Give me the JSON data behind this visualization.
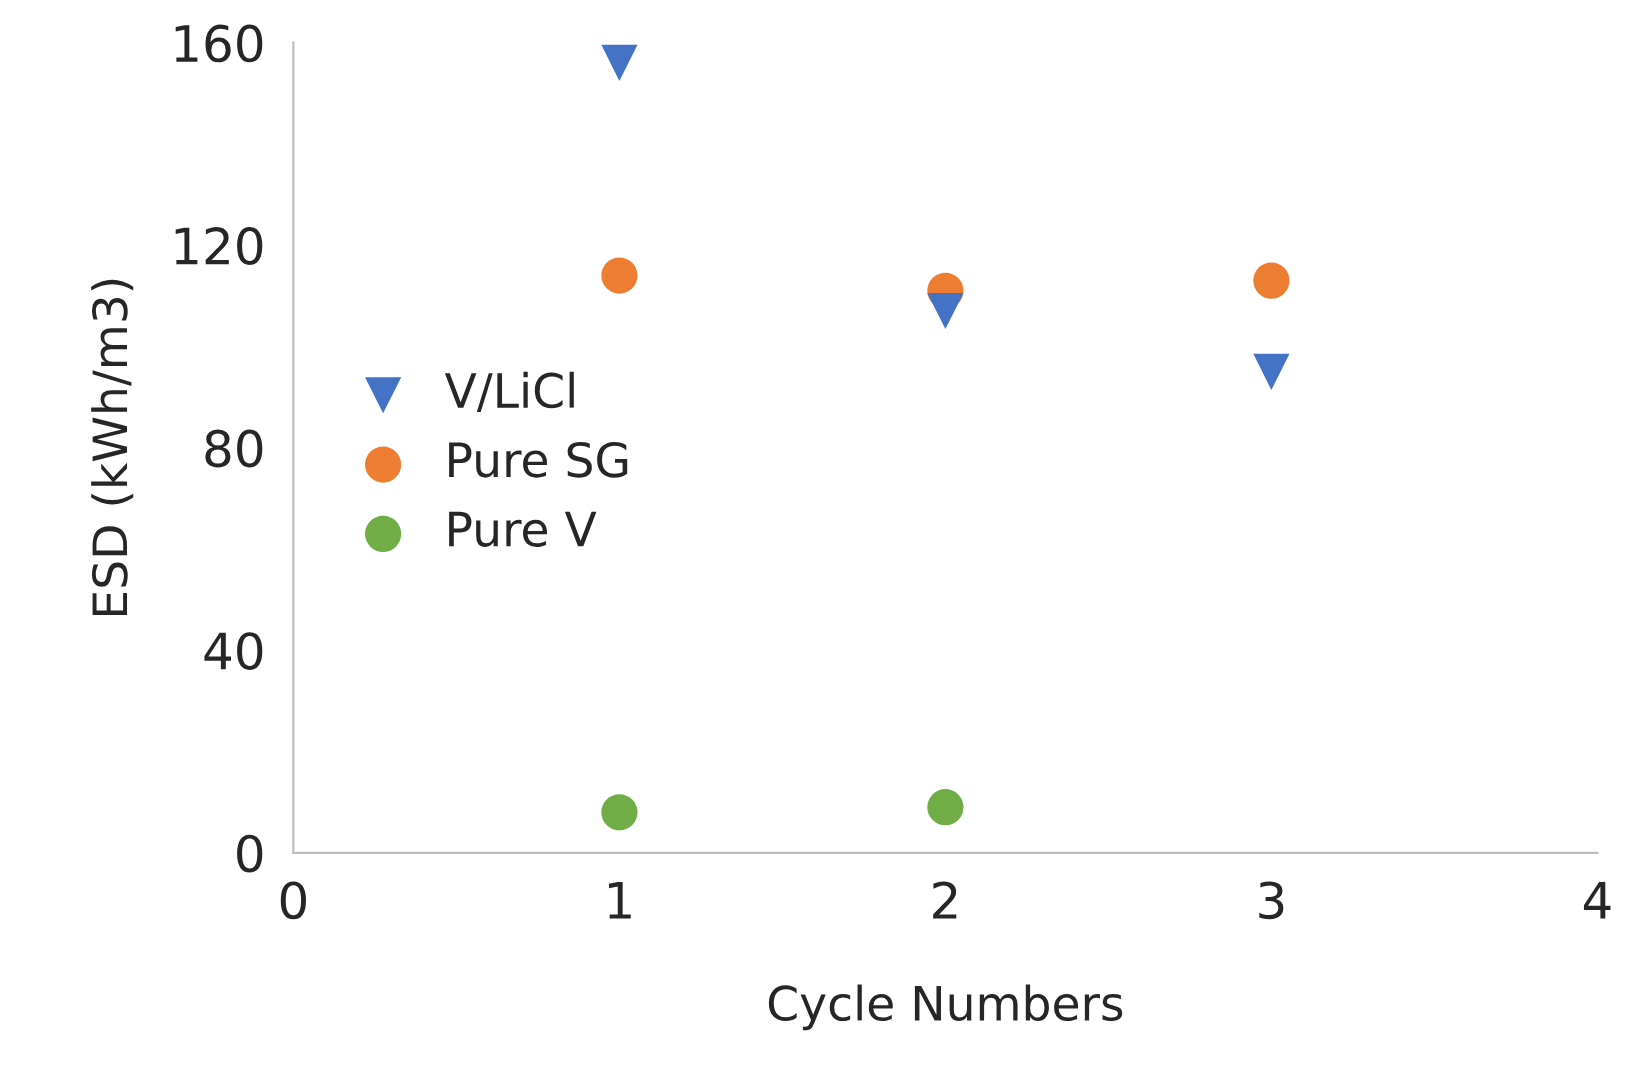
{
  "chart_data": {
    "type": "scatter",
    "xlabel": "Cycle Numbers",
    "ylabel": "ESD (kWh/m3)",
    "xlim": [
      0,
      4
    ],
    "xticks": [
      0,
      1,
      2,
      3,
      4
    ],
    "ylim": [
      0,
      160
    ],
    "yticks": [
      0,
      40,
      80,
      120,
      160
    ],
    "grid": false,
    "legend": "left",
    "series": [
      {
        "name": "V/LiCl",
        "color": "#4472c4",
        "marker": "triangle",
        "x": [
          1,
          2,
          3
        ],
        "values": [
          156,
          107,
          95
        ]
      },
      {
        "name": "Pure SG",
        "color": "#ed7d31",
        "marker": "circle",
        "x": [
          1,
          2,
          3
        ],
        "values": [
          114,
          111,
          113
        ]
      },
      {
        "name": "Pure V",
        "color": "#70ad47",
        "marker": "circle",
        "x": [
          1,
          2
        ],
        "values": [
          8,
          9
        ]
      }
    ]
  }
}
